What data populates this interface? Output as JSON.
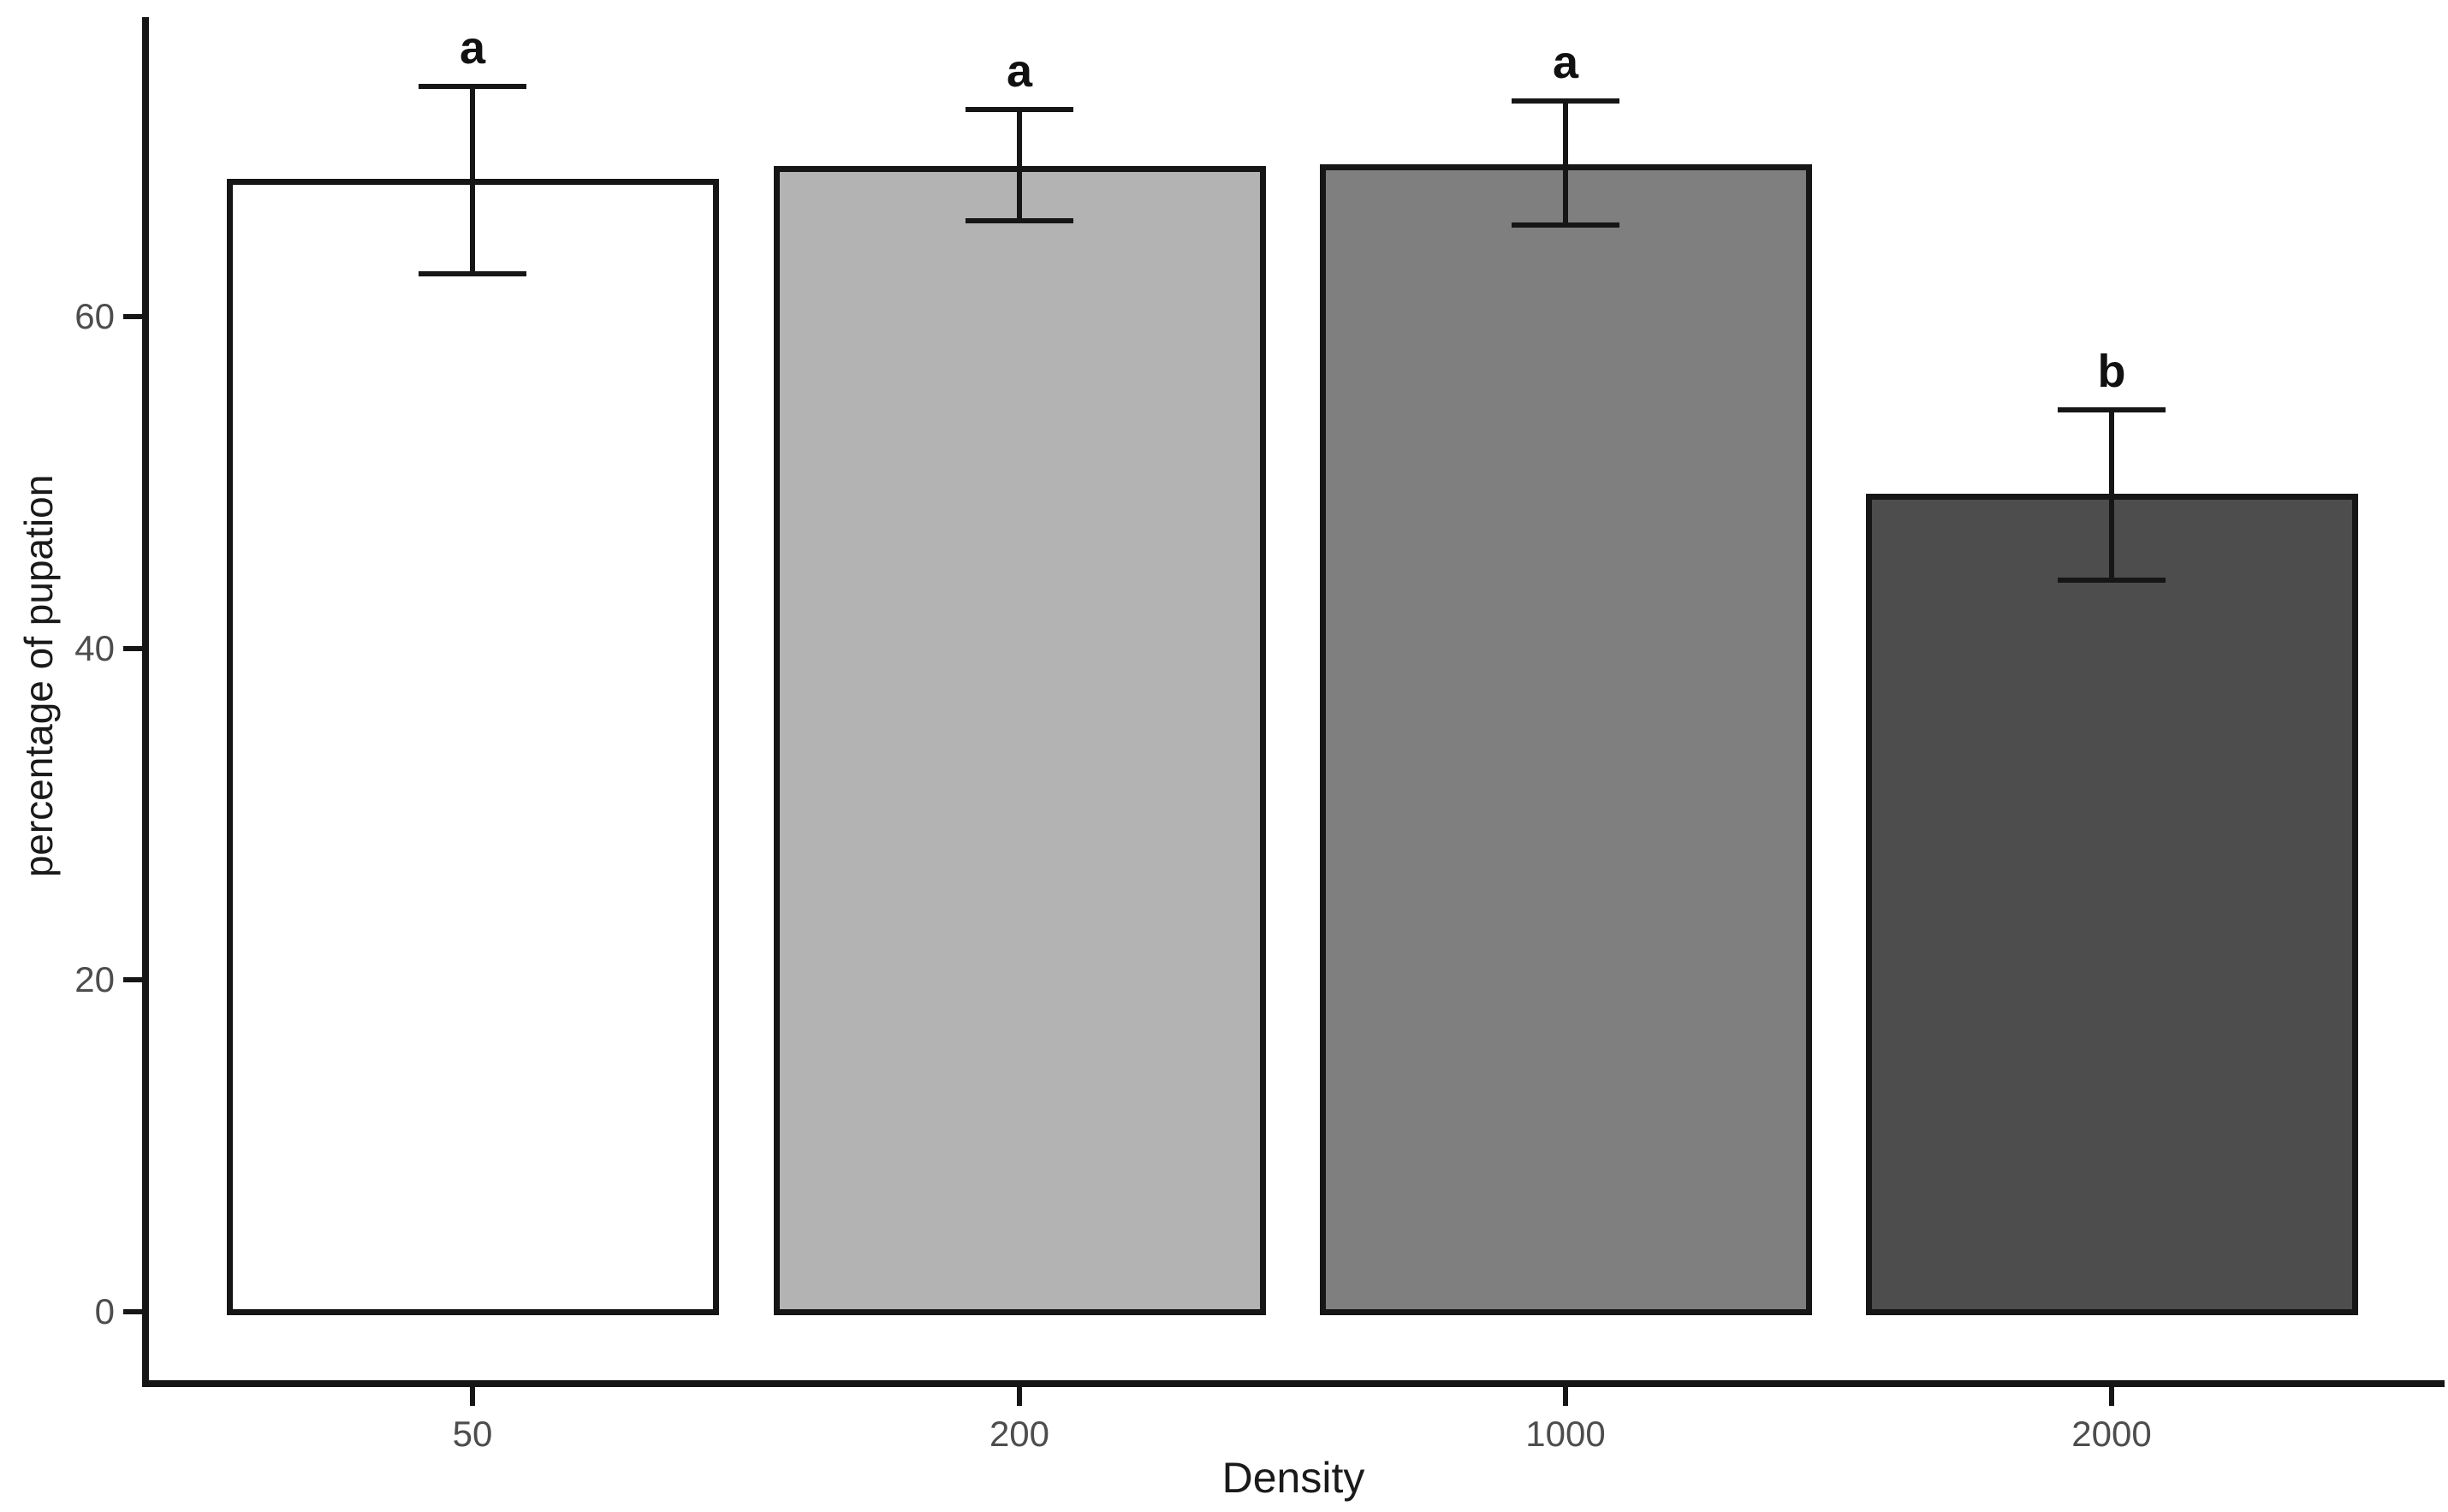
{
  "chart_data": {
    "type": "bar",
    "title": "",
    "xlabel": "Density",
    "ylabel": "percentage of pupation",
    "categories": [
      "50",
      "200",
      "1000",
      "2000"
    ],
    "values": [
      68.3,
      69.1,
      69.2,
      49.3
    ],
    "error_upper": [
      73.9,
      72.5,
      73.0,
      54.4
    ],
    "error_lower": [
      62.6,
      65.8,
      65.5,
      44.1
    ],
    "sig_labels": [
      "a",
      "a",
      "a",
      "b"
    ],
    "bar_fills": [
      "#ffffff",
      "#b3b3b3",
      "#7f7f7f",
      "#4d4d4d"
    ],
    "bar_stroke": "#161616",
    "y_ticks": [
      0,
      20,
      40,
      60
    ],
    "ylim": [
      -4.3,
      78.1
    ],
    "grid": false,
    "legend": "none",
    "background": "#ffffff"
  }
}
